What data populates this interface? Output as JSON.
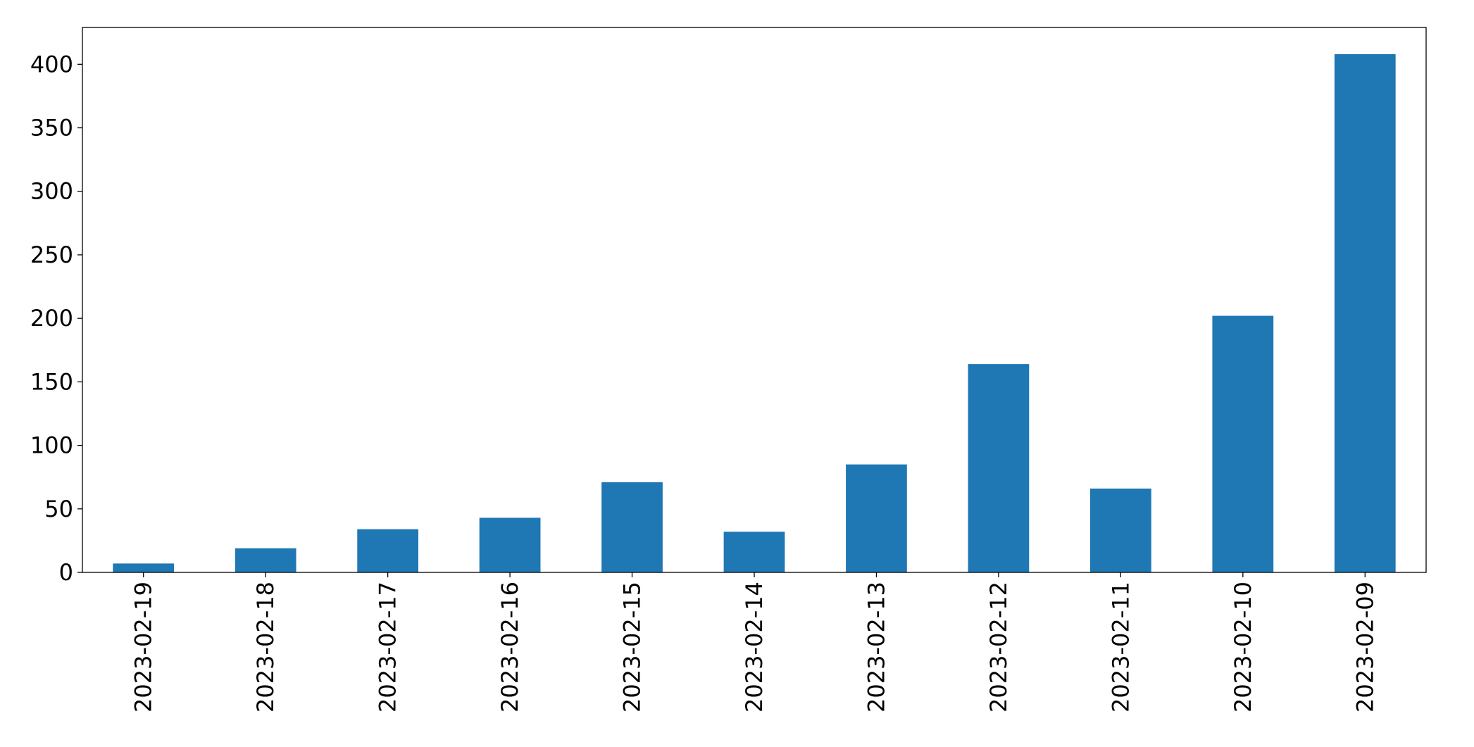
{
  "chart_data": {
    "type": "bar",
    "categories": [
      "2023-02-19",
      "2023-02-18",
      "2023-02-17",
      "2023-02-16",
      "2023-02-15",
      "2023-02-14",
      "2023-02-13",
      "2023-02-12",
      "2023-02-11",
      "2023-02-10",
      "2023-02-09"
    ],
    "values": [
      7,
      19,
      34,
      43,
      71,
      32,
      85,
      164,
      66,
      202,
      408
    ],
    "title": "",
    "xlabel": "",
    "ylabel": "",
    "ylim": [
      0,
      429
    ],
    "yticks": [
      0,
      50,
      100,
      150,
      200,
      250,
      300,
      350,
      400
    ],
    "grid": false,
    "legend": "none",
    "bar_color": "#1f77b4"
  }
}
